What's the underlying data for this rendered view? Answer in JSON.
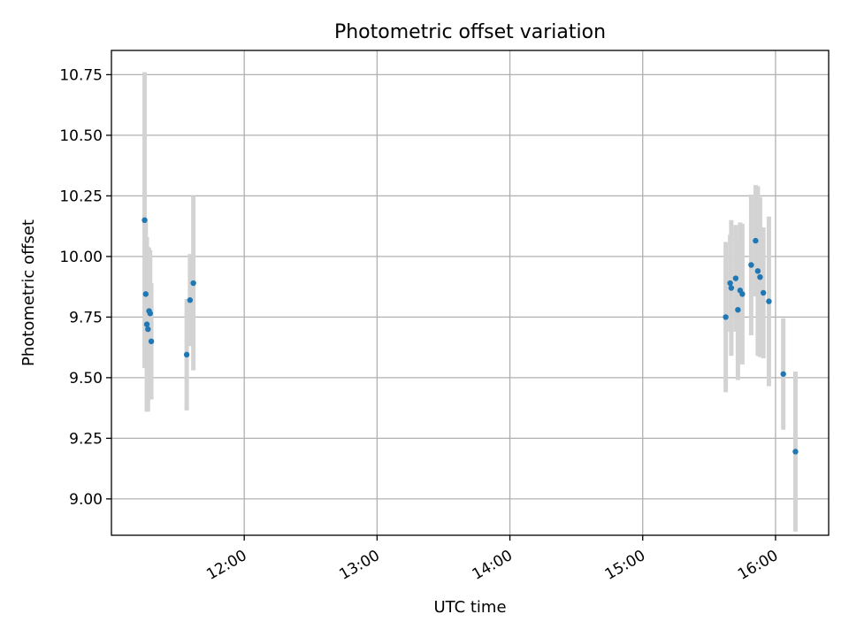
{
  "chart_data": {
    "type": "scatter",
    "title": "Photometric offset variation",
    "xlabel": "UTC time",
    "ylabel": "Photometric offset",
    "x_is_time": true,
    "xlim": [
      "11:00",
      "16:24"
    ],
    "ylim": [
      8.85,
      10.85
    ],
    "x_ticks": [
      "12:00",
      "13:00",
      "14:00",
      "15:00",
      "16:00"
    ],
    "y_ticks": [
      "9.00",
      "9.25",
      "9.50",
      "9.75",
      "10.00",
      "10.25",
      "10.50",
      "10.75"
    ],
    "grid": true,
    "colors": {
      "marker": "#1f77b4",
      "errorbar": "#d3d3d3",
      "grid": "#b0b0b0"
    },
    "series": [
      {
        "points": [
          {
            "x": "11:15",
            "y": 10.15,
            "err": 0.61
          },
          {
            "x": "11:15.5",
            "y": 9.845,
            "err": 0.3
          },
          {
            "x": "11:16",
            "y": 9.72,
            "err": 0.36
          },
          {
            "x": "11:16.5",
            "y": 9.7,
            "err": 0.34
          },
          {
            "x": "11:17",
            "y": 9.775,
            "err": 0.26
          },
          {
            "x": "11:17.5",
            "y": 9.765,
            "err": 0.26
          },
          {
            "x": "11:18",
            "y": 9.65,
            "err": 0.24
          },
          {
            "x": "11:34",
            "y": 9.595,
            "err": 0.23
          },
          {
            "x": "11:35.5",
            "y": 9.82,
            "err": 0.19
          },
          {
            "x": "11:37",
            "y": 9.89,
            "err": 0.36
          },
          {
            "x": "15:37.5",
            "y": 9.75,
            "err": 0.31
          },
          {
            "x": "15:39.5",
            "y": 9.89,
            "err": 0.2
          },
          {
            "x": "15:40",
            "y": 9.87,
            "err": 0.28
          },
          {
            "x": "15:42",
            "y": 9.91,
            "err": 0.22
          },
          {
            "x": "15:43",
            "y": 9.78,
            "err": 0.29
          },
          {
            "x": "15:44",
            "y": 9.86,
            "err": 0.28
          },
          {
            "x": "15:45",
            "y": 9.845,
            "err": 0.29
          },
          {
            "x": "15:49",
            "y": 9.965,
            "err": 0.29
          },
          {
            "x": "15:51",
            "y": 10.065,
            "err": 0.23
          },
          {
            "x": "15:52",
            "y": 9.94,
            "err": 0.35
          },
          {
            "x": "15:53",
            "y": 9.915,
            "err": 0.33
          },
          {
            "x": "15:54.5",
            "y": 9.85,
            "err": 0.27
          },
          {
            "x": "15:57",
            "y": 9.815,
            "err": 0.35
          },
          {
            "x": "16:03.5",
            "y": 9.515,
            "err": 0.23
          },
          {
            "x": "16:09",
            "y": 9.195,
            "err": 0.33
          }
        ]
      }
    ]
  }
}
